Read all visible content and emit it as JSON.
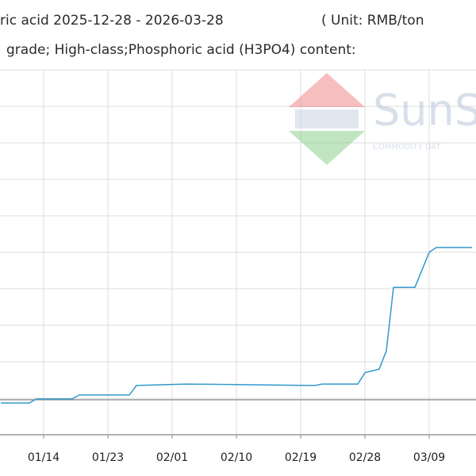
{
  "chart_data": {
    "type": "line",
    "title": "ric acid 2025-12-28 - 2026-03-28",
    "unit": "( Unit: RMB/ton",
    "subtitle": "grade; High-class;Phosphoric acid (H3PO4) content:",
    "watermark": "SunS",
    "watermark_sub": "COMMODITY DAT",
    "x": [
      "01/08",
      "01/12",
      "01/13",
      "01/18",
      "01/19",
      "01/26",
      "01/27",
      "02/03",
      "02/21",
      "02/22",
      "02/27",
      "02/28",
      "03/02",
      "03/03",
      "03/04",
      "03/07",
      "03/09",
      "03/10",
      "03/15"
    ],
    "series": [
      {
        "color": "#3399cc",
        "values": [
          0.87,
          0.87,
          0.98,
          0.98,
          1.09,
          1.09,
          1.35,
          1.39,
          1.35,
          1.39,
          1.39,
          1.7,
          1.8,
          2.3,
          4.04,
          4.04,
          5.0,
          5.13,
          5.13
        ]
      }
    ],
    "xticks": [
      "01/14",
      "01/23",
      "02/01",
      "02/10",
      "02/19",
      "02/28",
      "03/09"
    ],
    "reference_line": 0.96,
    "ylim": [
      0,
      10
    ],
    "ygrid": [
      0,
      1,
      2,
      3,
      4,
      5,
      6,
      7,
      8,
      9,
      10
    ],
    "grid": true
  }
}
